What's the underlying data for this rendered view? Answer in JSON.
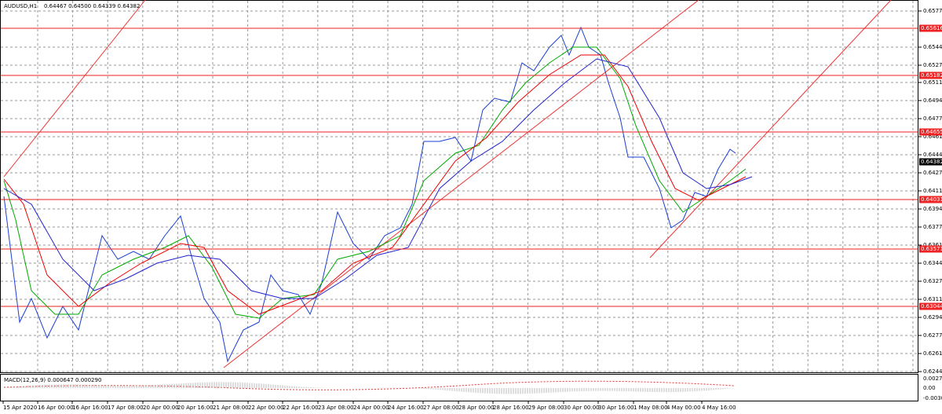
{
  "header": {
    "symbol": "AUDUSD,H1",
    "quote": "0.64467 0.64500 0.64339 0.64382"
  },
  "price_axis": [
    "0.65775",
    "0.65445",
    "0.65275",
    "0.65110",
    "0.64945",
    "0.64775",
    "0.64610",
    "0.64445",
    "0.64275",
    "0.64110",
    "0.63945",
    "0.63775",
    "0.63610",
    "0.63445",
    "0.63275",
    "0.63110",
    "0.62945",
    "0.62775",
    "0.62610",
    "0.62445"
  ],
  "levels": [
    "0.65616",
    "0.65182",
    "0.64655",
    "0.64031",
    "0.63571",
    "0.63044"
  ],
  "current_price": "0.64382",
  "time_axis": [
    "15 Apr 2020",
    "16 Apr 00:00",
    "16 Apr 16:00",
    "17 Apr 08:00",
    "20 Apr 00:00",
    "20 Apr 16:00",
    "21 Apr 08:00",
    "22 Apr 00:00",
    "22 Apr 16:00",
    "23 Apr 08:00",
    "24 Apr 00:00",
    "24 Apr 16:00",
    "27 Apr 08:00",
    "28 Apr 00:00",
    "28 Apr 16:00",
    "29 Apr 08:00",
    "30 Apr 00:00",
    "30 Apr 16:00",
    "1 May 08:00",
    "4 May 00:00",
    "4 May 16:00"
  ],
  "macd": {
    "label": "MACD(12,26,9) 0.000647 0.000290",
    "axis": [
      "0.002704",
      "0.00",
      "-0.003090"
    ]
  }
}
